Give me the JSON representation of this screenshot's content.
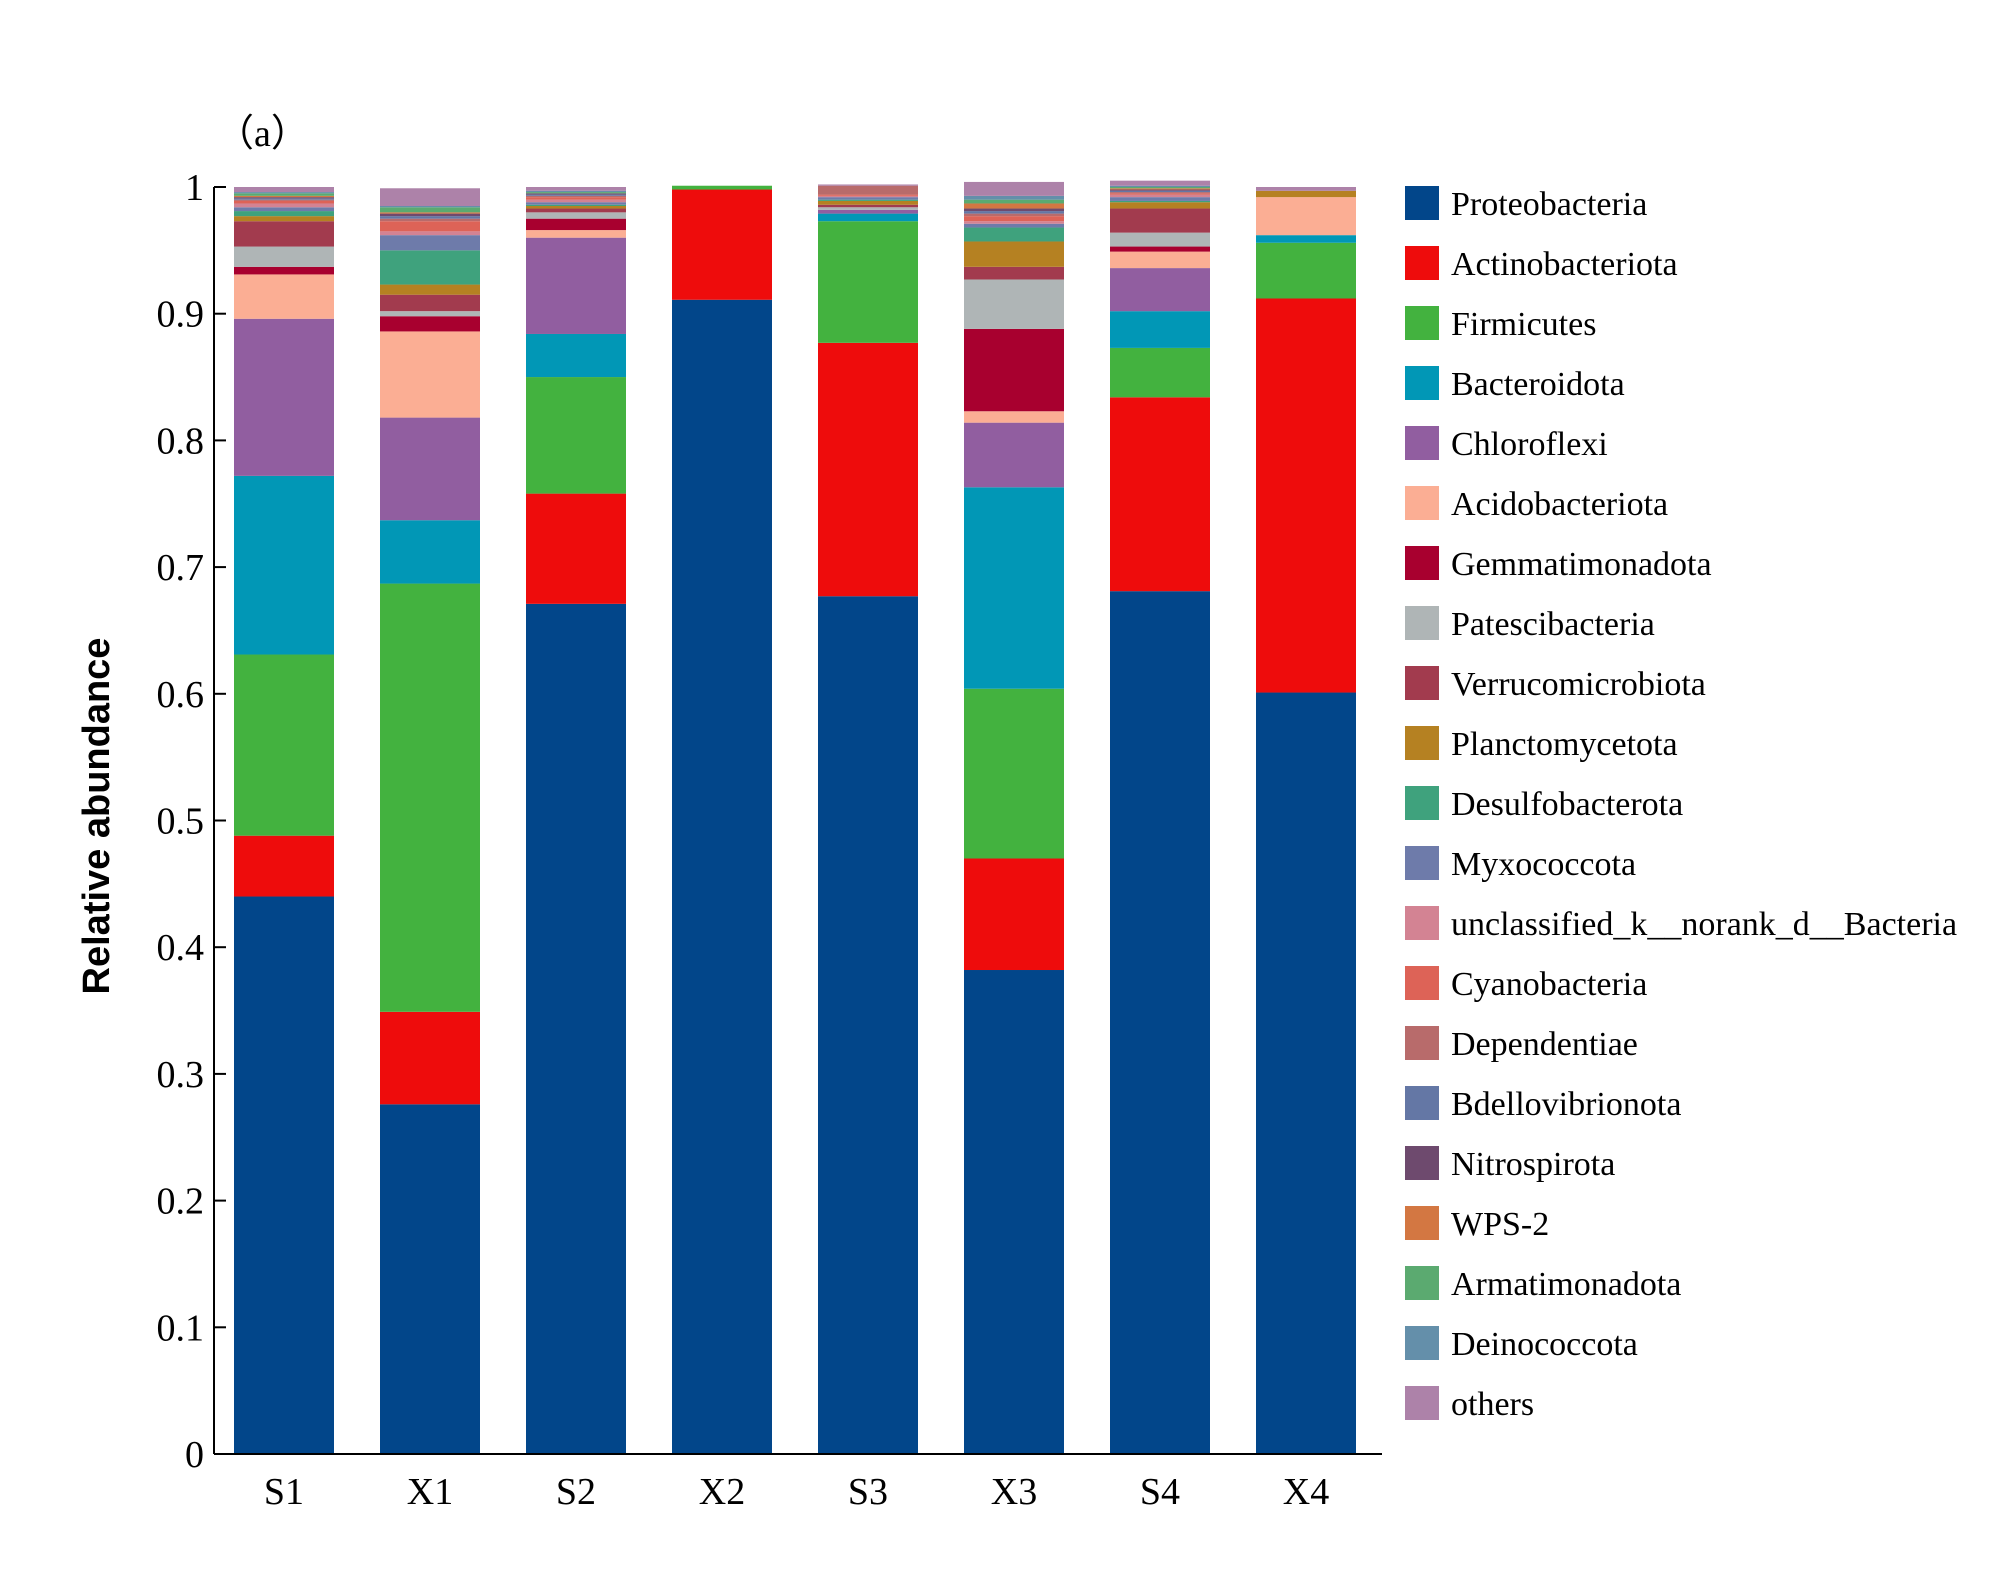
{
  "chart_data": {
    "type": "bar",
    "stacked": true,
    "panel_label": "（a）",
    "title": "",
    "xlabel": "",
    "ylabel": "Relative abundance",
    "ylim": [
      0,
      1
    ],
    "yticks": [
      0,
      0.1,
      0.2,
      0.3,
      0.4,
      0.5,
      0.6,
      0.7,
      0.8,
      0.9,
      1
    ],
    "ytick_labels": [
      "0",
      "0.1",
      "0.2",
      "0.3",
      "0.4",
      "0.5",
      "0.6",
      "0.7",
      "0.8",
      "0.9",
      "1"
    ],
    "categories": [
      "S1",
      "X1",
      "S2",
      "X2",
      "S3",
      "X3",
      "S4",
      "X4"
    ],
    "legend_position": "right",
    "series": [
      {
        "name": "Proteobacteria",
        "color": "#02468A",
        "values": [
          0.44,
          0.276,
          0.671,
          0.911,
          0.677,
          0.382,
          0.681,
          0.601
        ]
      },
      {
        "name": "Actinobacteriota",
        "color": "#EE0C0C",
        "values": [
          0.048,
          0.073,
          0.087,
          0.087,
          0.2,
          0.088,
          0.153,
          0.311
        ]
      },
      {
        "name": "Firmicutes",
        "color": "#43B23F",
        "values": [
          0.143,
          0.338,
          0.092,
          0.003,
          0.096,
          0.134,
          0.039,
          0.044
        ]
      },
      {
        "name": "Bacteroidota",
        "color": "#0197B6",
        "values": [
          0.141,
          0.05,
          0.034,
          0.0,
          0.006,
          0.159,
          0.029,
          0.006
        ]
      },
      {
        "name": "Chloroflexi",
        "color": "#915EA0",
        "values": [
          0.124,
          0.081,
          0.076,
          0.0,
          0.003,
          0.051,
          0.034,
          0.0
        ]
      },
      {
        "name": "Acidobacteriota",
        "color": "#FBAE94",
        "values": [
          0.035,
          0.068,
          0.006,
          0.0,
          0.0,
          0.009,
          0.013,
          0.03
        ]
      },
      {
        "name": "Gemmatimonadota",
        "color": "#A8002F",
        "values": [
          0.006,
          0.012,
          0.009,
          0.0,
          0.0,
          0.065,
          0.004,
          0.0
        ]
      },
      {
        "name": "Patescibacteria",
        "color": "#AFB5B6",
        "values": [
          0.016,
          0.004,
          0.005,
          0.0,
          0.002,
          0.039,
          0.011,
          0.0
        ]
      },
      {
        "name": "Verrucomicrobiota",
        "color": "#A23B4E",
        "values": [
          0.02,
          0.013,
          0.003,
          0.0,
          0.002,
          0.01,
          0.019,
          0.0
        ]
      },
      {
        "name": "Planctomycetota",
        "color": "#B58122",
        "values": [
          0.004,
          0.008,
          0.002,
          0.0,
          0.003,
          0.02,
          0.005,
          0.005
        ]
      },
      {
        "name": "Desulfobacterota",
        "color": "#3FA27D",
        "values": [
          0.004,
          0.027,
          0.001,
          0.0,
          0.001,
          0.011,
          0.001,
          0.0
        ]
      },
      {
        "name": "Myxococcota",
        "color": "#6E7BAA",
        "values": [
          0.003,
          0.012,
          0.002,
          0.0,
          0.002,
          0.003,
          0.003,
          0.0
        ]
      },
      {
        "name": "unclassified_k__norank_d__Bacteria",
        "color": "#D38393",
        "values": [
          0.003,
          0.003,
          0.002,
          0.0,
          0.001,
          0.002,
          0.002,
          0.0
        ]
      },
      {
        "name": "Cyanobacteria",
        "color": "#DD6357",
        "values": [
          0.002,
          0.008,
          0.002,
          0.0,
          0.001,
          0.004,
          0.001,
          0.0
        ]
      },
      {
        "name": "Dependentiae",
        "color": "#B86B6B",
        "values": [
          0.001,
          0.002,
          0.001,
          0.0,
          0.007,
          0.002,
          0.001,
          0.0
        ]
      },
      {
        "name": "Bdellovibrionota",
        "color": "#6477A5",
        "values": [
          0.001,
          0.002,
          0.001,
          0.0,
          0.0,
          0.002,
          0.001,
          0.0
        ]
      },
      {
        "name": "Nitrospirota",
        "color": "#6E4A6E",
        "values": [
          0.001,
          0.002,
          0.001,
          0.0,
          0.0,
          0.002,
          0.001,
          0.0
        ]
      },
      {
        "name": "WPS-2",
        "color": "#D37742",
        "values": [
          0.001,
          0.001,
          0.0,
          0.0,
          0.0,
          0.004,
          0.001,
          0.0
        ]
      },
      {
        "name": "Armatimonadota",
        "color": "#5BAA70",
        "values": [
          0.002,
          0.004,
          0.001,
          0.0,
          0.0,
          0.003,
          0.001,
          0.0
        ]
      },
      {
        "name": "Deinococcota",
        "color": "#648FAA",
        "values": [
          0.001,
          0.001,
          0.001,
          0.0,
          0.0,
          0.003,
          0.001,
          0.0
        ]
      },
      {
        "name": "others",
        "color": "#AD82A9",
        "values": [
          0.004,
          0.014,
          0.003,
          0.0,
          0.001,
          0.011,
          0.004,
          0.003
        ]
      }
    ]
  }
}
